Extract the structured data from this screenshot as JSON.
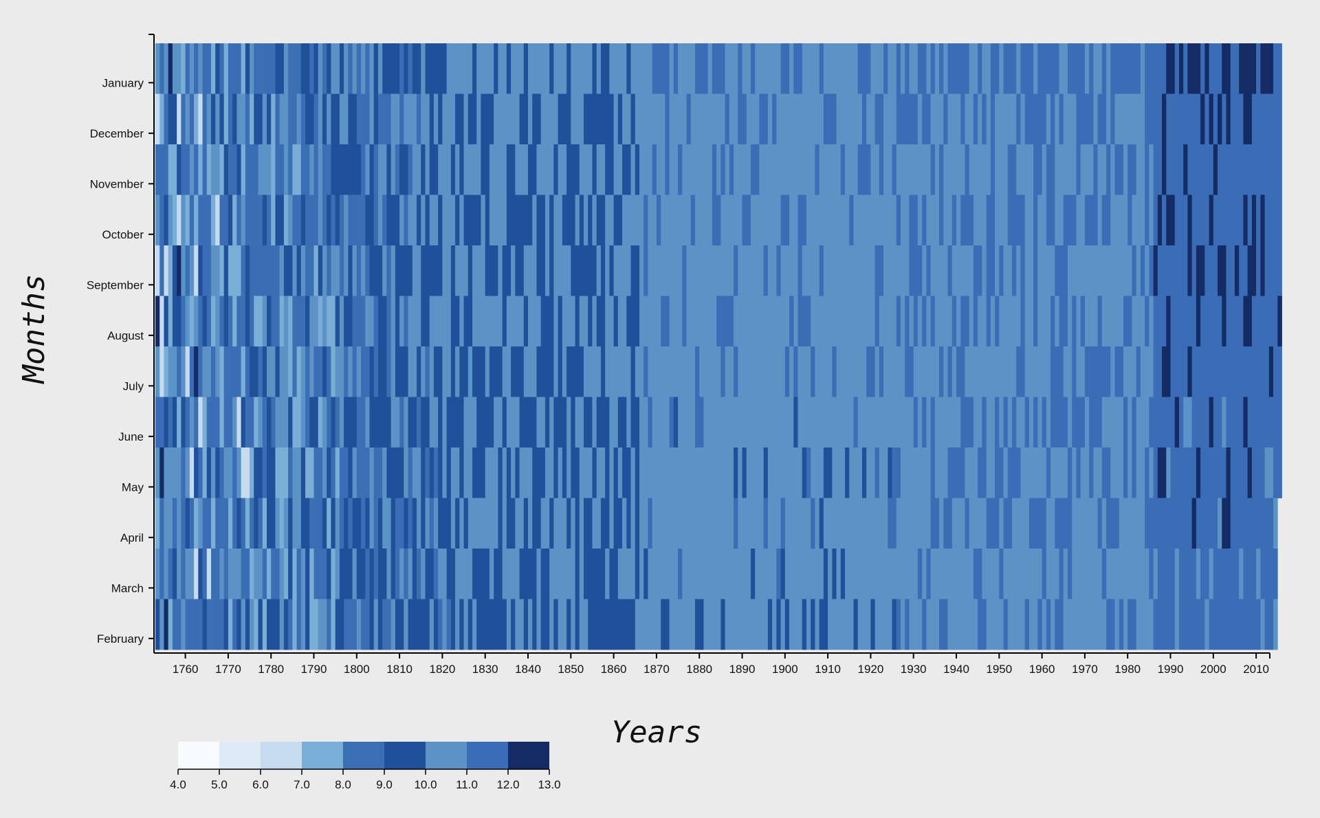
{
  "chart_data": {
    "type": "heatmap",
    "title": "",
    "xlabel": "Years",
    "ylabel": "Months",
    "x_range": [
      1753,
      2015
    ],
    "x_ticks": [
      1760,
      1770,
      1780,
      1790,
      1800,
      1810,
      1820,
      1830,
      1840,
      1850,
      1860,
      1870,
      1880,
      1890,
      1900,
      1910,
      1920,
      1930,
      1940,
      1950,
      1960,
      1970,
      1980,
      1990,
      2000,
      2010
    ],
    "months_top_to_bottom": [
      "January",
      "December",
      "November",
      "October",
      "September",
      "August",
      "July",
      "June",
      "May",
      "April",
      "March",
      "February"
    ],
    "last_year_by_month": {
      "January": 2015,
      "December": 2015,
      "November": 2015,
      "October": 2015,
      "September": 2015,
      "August": 2015,
      "July": 2015,
      "June": 2015,
      "May": 2015,
      "April": 2014,
      "March": 2014,
      "February": 2014
    },
    "mean_by_month_approx": {
      "January": 11.0,
      "December": 10.8,
      "November": 10.6,
      "October": 10.7,
      "September": 10.6,
      "August": 10.7,
      "July": 10.6,
      "June": 10.5,
      "May": 10.4,
      "April": 10.5,
      "March": 10.3,
      "February": 10.3
    },
    "era_values_approx": [
      {
        "from": 1753,
        "to": 1795,
        "value": 9.3
      },
      {
        "from": 1796,
        "to": 1830,
        "value": 9.9
      },
      {
        "from": 1831,
        "to": 1865,
        "value": 10.0
      },
      {
        "from": 1866,
        "to": 1925,
        "value": 10.6
      },
      {
        "from": 1926,
        "to": 1985,
        "value": 10.9
      },
      {
        "from": 1986,
        "to": 2015,
        "value": 11.6
      }
    ],
    "color_scale": {
      "thresholds": [
        "4.0",
        "5.0",
        "6.0",
        "7.0",
        "8.0",
        "9.0",
        "10.0",
        "11.0",
        "12.0",
        "13.0"
      ],
      "colors": [
        "#f7fbff",
        "#deebf7",
        "#c6dbef",
        "#7aaed6",
        "#3b6fb4",
        "#21509a",
        "#5b93c6",
        "#3a6db5",
        "#142b65"
      ]
    }
  }
}
